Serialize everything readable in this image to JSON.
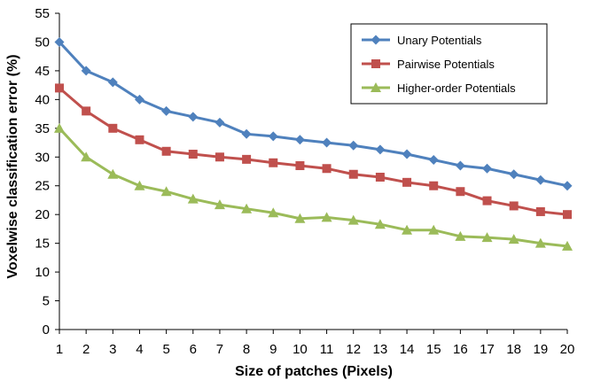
{
  "chart_data": {
    "type": "line",
    "title": "",
    "xlabel": "Size of patches (Pixels)",
    "ylabel": "Voxelwise classification error (%)",
    "x": [
      1,
      2,
      3,
      4,
      5,
      6,
      7,
      8,
      9,
      10,
      11,
      12,
      13,
      14,
      15,
      16,
      17,
      18,
      19,
      20
    ],
    "xticks": [
      "1",
      "2",
      "3",
      "4",
      "5",
      "6",
      "7",
      "8",
      "9",
      "10",
      "11",
      "12",
      "13",
      "14",
      "15",
      "16",
      "17",
      "18",
      "19",
      "20"
    ],
    "ylim": [
      0,
      55
    ],
    "yticks": [
      "0",
      "5",
      "10",
      "15",
      "20",
      "25",
      "30",
      "35",
      "40",
      "45",
      "50",
      "55"
    ],
    "grid": false,
    "legend_position": "top-right",
    "series": [
      {
        "name": "Unary Potentials",
        "color": "#4f81bd",
        "marker": "diamond",
        "values": [
          50,
          45,
          43,
          40,
          38,
          37,
          36,
          34,
          33.6,
          33,
          32.5,
          32,
          31.3,
          30.5,
          29.5,
          28.5,
          28,
          27,
          26,
          25
        ]
      },
      {
        "name": "Pairwise Potentials",
        "color": "#c0504d",
        "marker": "square",
        "values": [
          42,
          38,
          35,
          33,
          31,
          30.5,
          30,
          29.6,
          29,
          28.5,
          28,
          27,
          26.5,
          25.6,
          25,
          24,
          22.4,
          21.5,
          20.5,
          20
        ]
      },
      {
        "name": "Higher-order Potentials",
        "color": "#9bbb59",
        "marker": "triangle",
        "values": [
          35,
          30,
          27,
          25,
          24,
          22.7,
          21.7,
          21,
          20.3,
          19.3,
          19.5,
          19,
          18.3,
          17.3,
          17.3,
          16.2,
          16,
          15.7,
          15,
          14.5
        ]
      }
    ]
  }
}
